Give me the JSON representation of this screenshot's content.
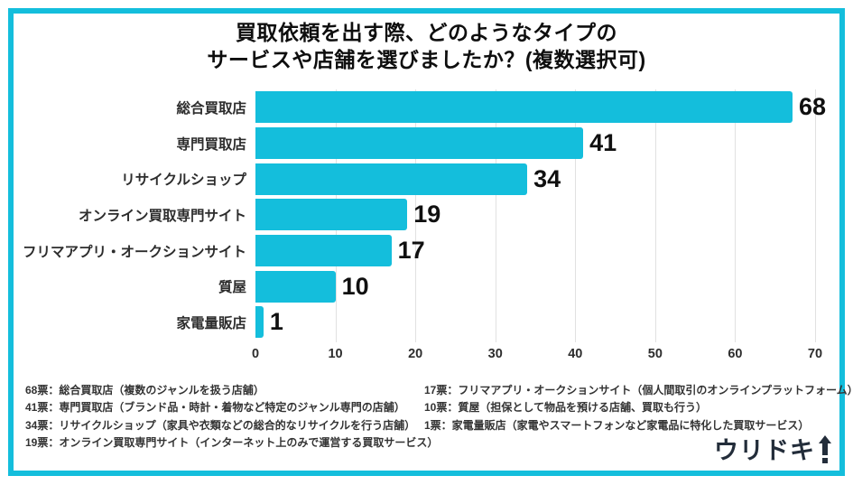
{
  "frame_color": "#14bedc",
  "title": {
    "line1": "買取依頼を出す際、どのようなタイプの",
    "line2": "サービスや店舗を選びましたか？(複数選択可)"
  },
  "chart_data": {
    "type": "bar",
    "orientation": "horizontal",
    "title": "買取依頼を出す際、どのようなタイプのサービスや店舗を選びましたか？(複数選択可)",
    "categories": [
      "総合買取店",
      "専門買取店",
      "リサイクルショップ",
      "オンライン買取専門サイト",
      "フリマアプリ・オークションサイト",
      "質屋",
      "家電量販店"
    ],
    "values": [
      68,
      41,
      34,
      19,
      17,
      10,
      1
    ],
    "xlabel": "",
    "ylabel": "",
    "xlim": [
      0,
      70
    ],
    "xticks": [
      0,
      10,
      20,
      30,
      40,
      50,
      60,
      70
    ],
    "grid": true,
    "bar_color": "#14bedc",
    "legend": false
  },
  "footnotes": {
    "left": [
      "68票：総合買取店（複数のジャンルを扱う店舗）",
      "41票：専門買取店（ブランド品・時計・着物など特定のジャンル専門の店舗）",
      "34票：リサイクルショップ（家具や衣類などの総合的なリサイクルを行う店舗）",
      "19票：オンライン買取専門サイト（インターネット上のみで運営する買取サービス）"
    ],
    "right": [
      "17票：フリマアプリ・オークションサイト（個人間取引のオンラインプラットフォーム）",
      "10票：質屋（担保として物品を預ける店舗、買取も行う）",
      "1票：家電量販店（家電やスマートフォンなど家電品に特化した買取サービス）"
    ]
  },
  "logo": {
    "text": "ウリドキ"
  }
}
